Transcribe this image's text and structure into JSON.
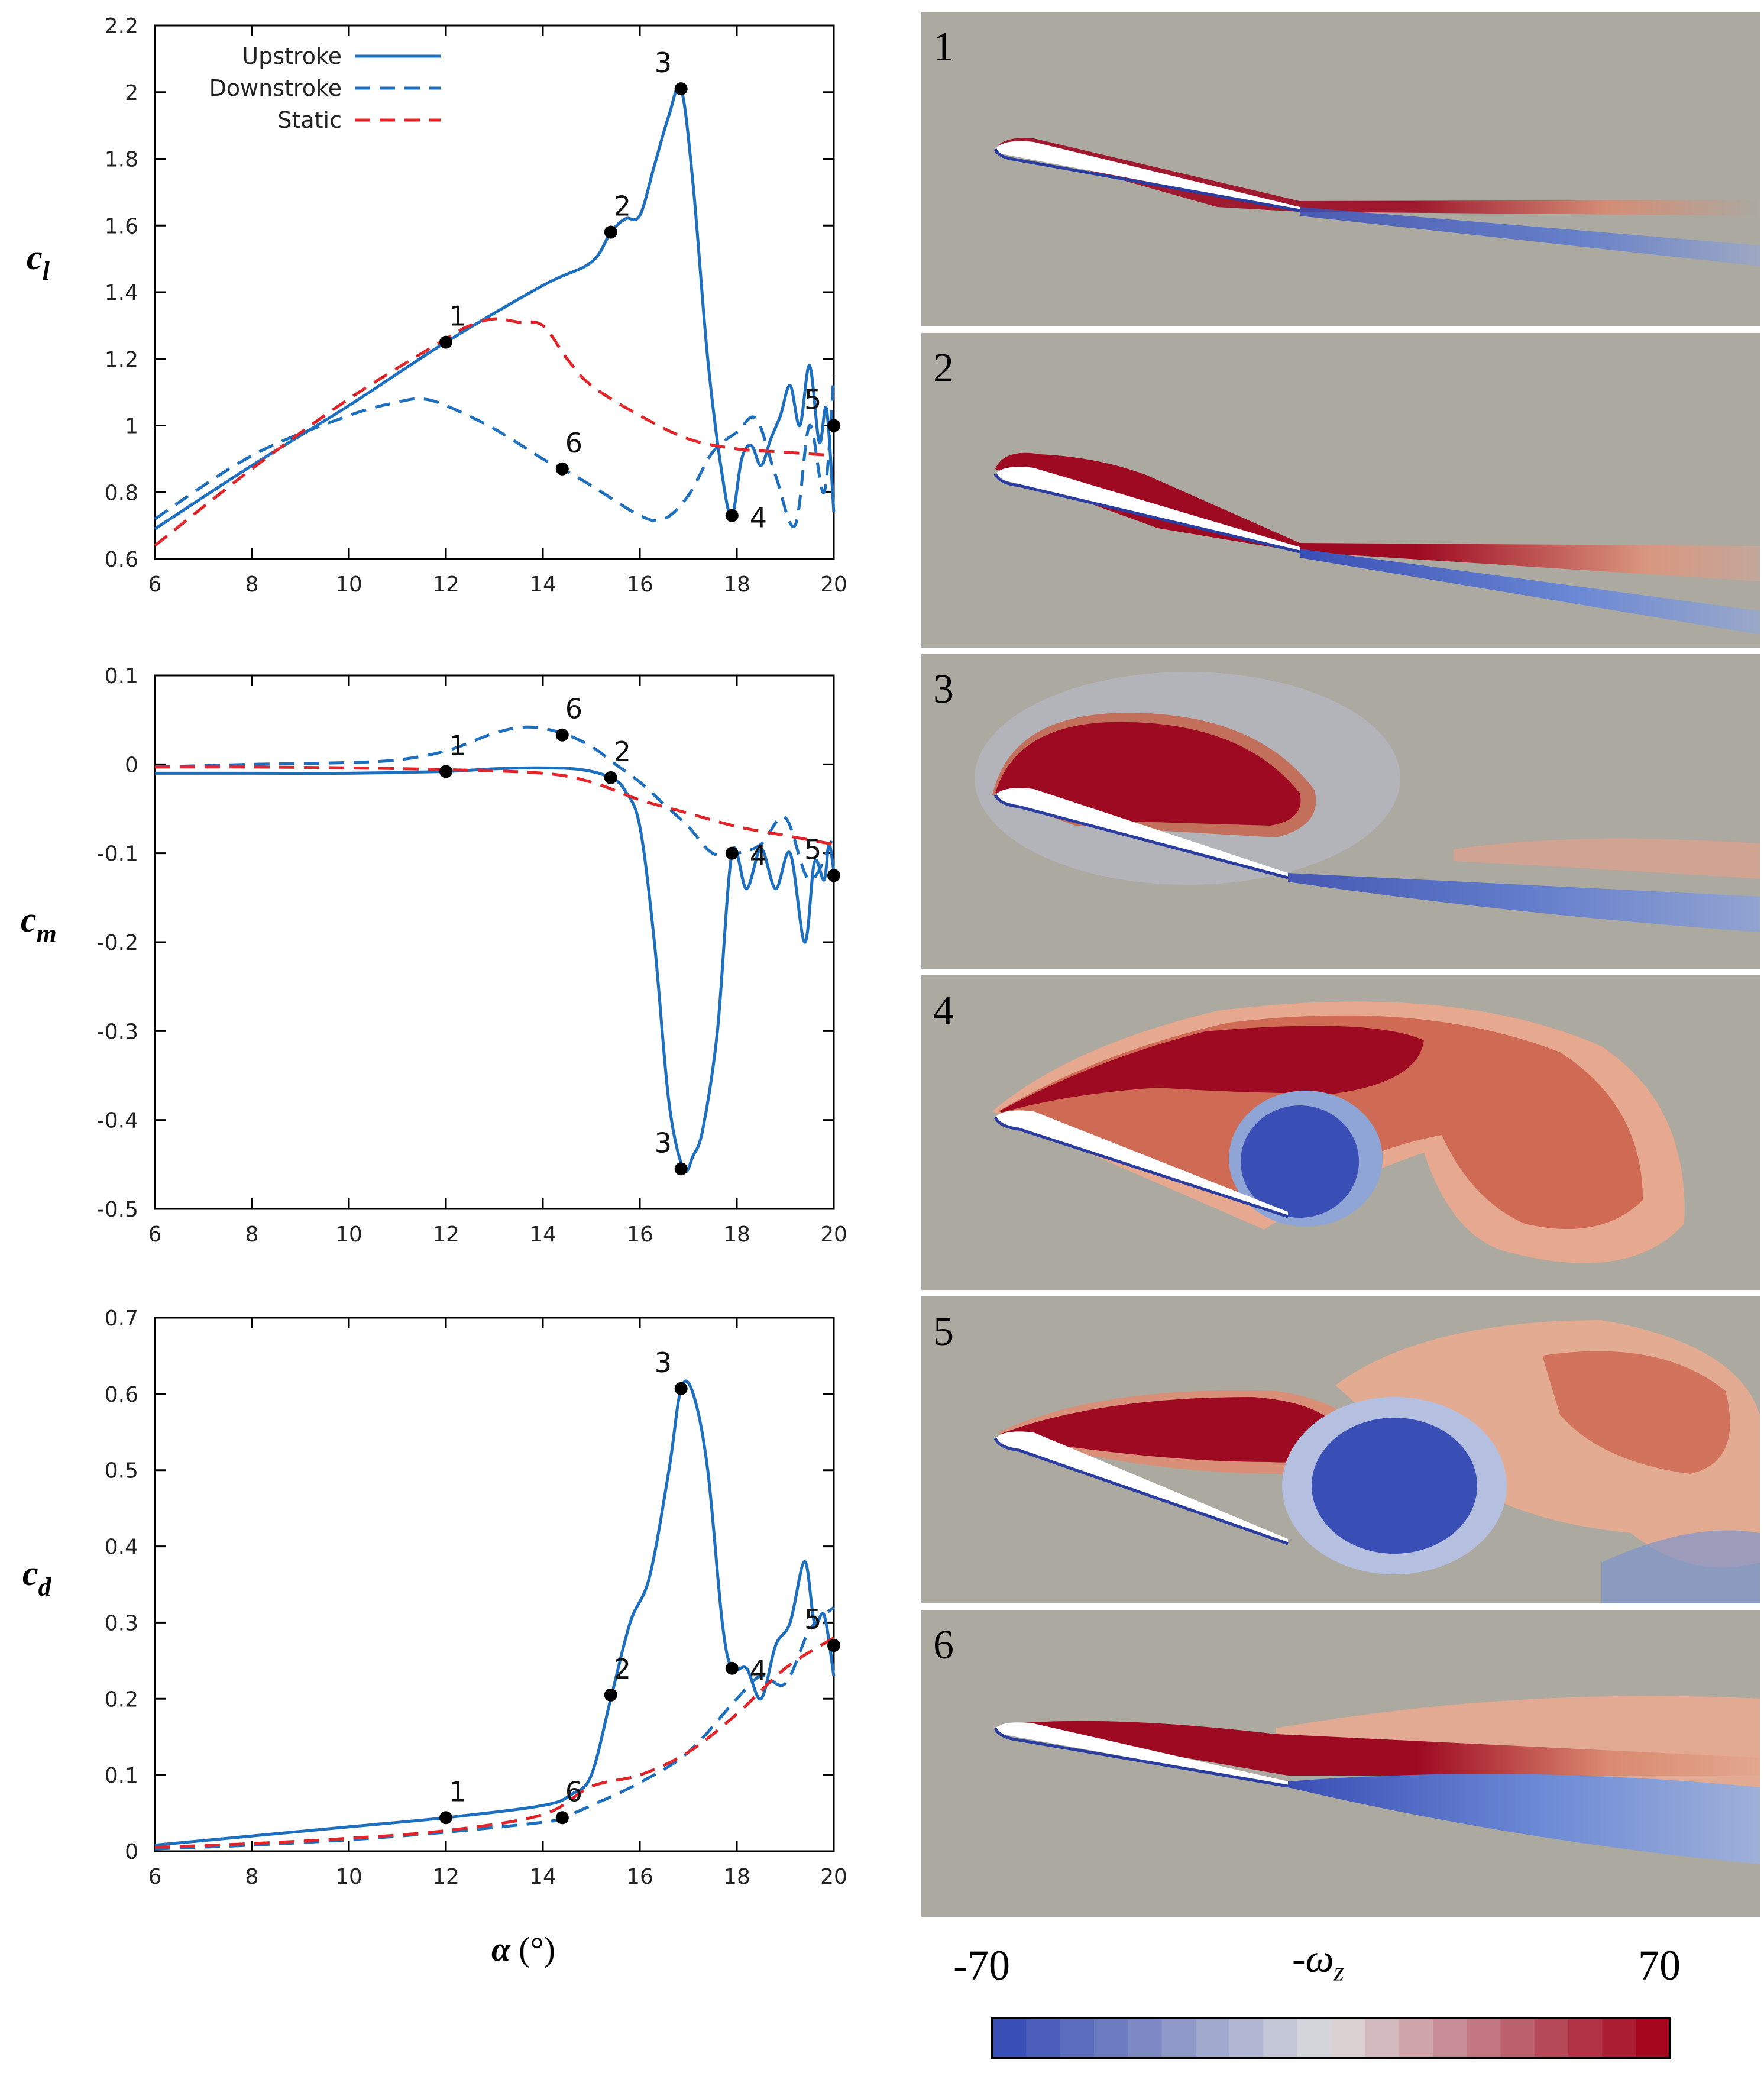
{
  "chart_data": [
    {
      "type": "line",
      "id": "cl",
      "ylabel": "c_l",
      "xlim": [
        6,
        20
      ],
      "ylim": [
        0.6,
        2.2
      ],
      "xticks": [
        6,
        8,
        10,
        12,
        14,
        16,
        18,
        20
      ],
      "yticks": [
        "0.6",
        "0.8",
        "1",
        "1.2",
        "1.4",
        "1.6",
        "1.8",
        "2",
        "2.2"
      ],
      "legend": "top-left",
      "series": [
        {
          "name": "Upstroke",
          "style": "solid",
          "color": "#1f6fbf",
          "x": [
            6,
            8,
            10,
            12,
            14,
            15,
            15.4,
            15.7,
            16,
            16.3,
            16.6,
            16.85,
            17.1,
            17.4,
            17.7,
            17.9,
            18.1,
            18.3,
            18.5,
            18.7,
            18.9,
            19.1,
            19.3,
            19.5,
            19.7,
            19.85,
            20
          ],
          "y": [
            0.69,
            0.88,
            1.06,
            1.25,
            1.42,
            1.49,
            1.58,
            1.62,
            1.63,
            1.78,
            1.93,
            2.01,
            1.72,
            1.2,
            0.85,
            0.73,
            0.9,
            0.94,
            0.88,
            0.96,
            1.03,
            1.12,
            1.0,
            1.18,
            0.95,
            1.05,
            0.74
          ]
        },
        {
          "name": "Downstroke",
          "style": "dashed",
          "color": "#1f6fbf",
          "x": [
            6,
            8,
            10,
            11,
            11.5,
            12,
            13,
            14,
            14.4,
            15,
            16,
            16.5,
            17,
            17.5,
            18,
            18.4,
            18.8,
            19.2,
            19.5,
            19.8,
            20
          ],
          "y": [
            0.72,
            0.91,
            1.03,
            1.07,
            1.08,
            1.06,
            0.99,
            0.9,
            0.87,
            0.82,
            0.73,
            0.72,
            0.79,
            0.92,
            0.98,
            1.02,
            0.85,
            0.7,
            1.0,
            0.8,
            1.15
          ]
        },
        {
          "name": "Static",
          "style": "dashed",
          "color": "#e0262b",
          "x": [
            6,
            8,
            10,
            12,
            12.5,
            13,
            13.5,
            14,
            14.5,
            15,
            16,
            17,
            18,
            19,
            20
          ],
          "y": [
            0.64,
            0.87,
            1.08,
            1.26,
            1.3,
            1.32,
            1.31,
            1.3,
            1.2,
            1.12,
            1.03,
            0.96,
            0.93,
            0.92,
            0.91
          ]
        }
      ],
      "points": [
        {
          "label": "1",
          "x": 12,
          "y": 1.25
        },
        {
          "label": "2",
          "x": 15.4,
          "y": 1.58
        },
        {
          "label": "3",
          "x": 16.85,
          "y": 2.01
        },
        {
          "label": "4",
          "x": 17.9,
          "y": 0.73
        },
        {
          "label": "5",
          "x": 20,
          "y": 1.0
        },
        {
          "label": "6",
          "x": 14.4,
          "y": 0.87
        }
      ]
    },
    {
      "type": "line",
      "id": "cm",
      "ylabel": "c_m",
      "xlim": [
        6,
        20
      ],
      "ylim": [
        -0.5,
        0.1
      ],
      "xticks": [
        6,
        8,
        10,
        12,
        14,
        16,
        18,
        20
      ],
      "yticks": [
        "-0.5",
        "-0.4",
        "-0.3",
        "-0.2",
        "-0.1",
        "0",
        "0.1"
      ],
      "series": [
        {
          "name": "Upstroke",
          "style": "solid",
          "color": "#1f6fbf",
          "x": [
            6,
            8,
            10,
            12,
            13,
            14,
            14.8,
            15.4,
            15.7,
            16,
            16.3,
            16.6,
            16.9,
            17.1,
            17.3,
            17.6,
            17.9,
            18.2,
            18.5,
            18.8,
            19.1,
            19.4,
            19.6,
            19.8,
            19.9,
            20
          ],
          "y": [
            -0.01,
            -0.01,
            -0.01,
            -0.008,
            -0.005,
            -0.004,
            -0.006,
            -0.015,
            -0.03,
            -0.07,
            -0.2,
            -0.38,
            -0.455,
            -0.44,
            -0.41,
            -0.3,
            -0.1,
            -0.14,
            -0.095,
            -0.14,
            -0.1,
            -0.2,
            -0.11,
            -0.13,
            -0.09,
            -0.12
          ]
        },
        {
          "name": "Downstroke",
          "style": "dashed",
          "color": "#1f6fbf",
          "x": [
            6,
            8,
            10,
            11,
            12,
            13,
            13.7,
            14.4,
            15,
            15.5,
            16,
            16.5,
            17,
            17.5,
            18,
            18.5,
            19,
            19.5,
            20
          ],
          "y": [
            -0.003,
            0.0,
            0.002,
            0.005,
            0.015,
            0.035,
            0.042,
            0.035,
            0.02,
            0.0,
            -0.02,
            -0.045,
            -0.07,
            -0.1,
            -0.1,
            -0.09,
            -0.06,
            -0.13,
            -0.08
          ]
        },
        {
          "name": "Static",
          "style": "dashed",
          "color": "#e0262b",
          "x": [
            6,
            8,
            10,
            12,
            14,
            15,
            16,
            17,
            18,
            19,
            20
          ],
          "y": [
            -0.003,
            -0.003,
            -0.004,
            -0.006,
            -0.01,
            -0.02,
            -0.04,
            -0.055,
            -0.07,
            -0.08,
            -0.09
          ]
        }
      ],
      "points": [
        {
          "label": "1",
          "x": 12,
          "y": -0.008
        },
        {
          "label": "2",
          "x": 15.4,
          "y": -0.015
        },
        {
          "label": "3",
          "x": 16.85,
          "y": -0.455
        },
        {
          "label": "4",
          "x": 17.9,
          "y": -0.1
        },
        {
          "label": "5",
          "x": 20,
          "y": -0.125
        },
        {
          "label": "6",
          "x": 14.4,
          "y": 0.033
        }
      ]
    },
    {
      "type": "line",
      "id": "cd",
      "ylabel": "c_d",
      "xlabel": "α (°)",
      "xlim": [
        6,
        20
      ],
      "ylim": [
        0,
        0.7
      ],
      "xticks": [
        6,
        8,
        10,
        12,
        14,
        16,
        18,
        20
      ],
      "yticks": [
        "0",
        "0.1",
        "0.2",
        "0.3",
        "0.4",
        "0.5",
        "0.6",
        "0.7"
      ],
      "series": [
        {
          "name": "Upstroke",
          "style": "solid",
          "color": "#1f6fbf",
          "x": [
            6,
            8,
            10,
            12,
            14,
            14.6,
            15,
            15.4,
            15.8,
            16.2,
            16.6,
            16.85,
            17.1,
            17.4,
            17.7,
            17.9,
            18.2,
            18.5,
            18.8,
            19.1,
            19.4,
            19.6,
            19.8,
            20
          ],
          "y": [
            0.008,
            0.02,
            0.032,
            0.044,
            0.06,
            0.075,
            0.1,
            0.2,
            0.3,
            0.36,
            0.5,
            0.607,
            0.6,
            0.5,
            0.3,
            0.24,
            0.24,
            0.2,
            0.27,
            0.3,
            0.38,
            0.3,
            0.31,
            0.23
          ]
        },
        {
          "name": "Downstroke",
          "style": "dashed",
          "color": "#1f6fbf",
          "x": [
            6,
            8,
            10,
            12,
            14,
            14.4,
            15,
            16,
            17,
            18,
            18.5,
            19,
            19.5,
            20
          ],
          "y": [
            0.003,
            0.008,
            0.015,
            0.025,
            0.038,
            0.044,
            0.06,
            0.09,
            0.13,
            0.2,
            0.23,
            0.22,
            0.29,
            0.32
          ]
        },
        {
          "name": "Static",
          "style": "dashed",
          "color": "#e0262b",
          "x": [
            6,
            8,
            10,
            12,
            14,
            15,
            16,
            17,
            18,
            19,
            20
          ],
          "y": [
            0.005,
            0.01,
            0.017,
            0.027,
            0.048,
            0.085,
            0.1,
            0.13,
            0.18,
            0.24,
            0.28
          ]
        }
      ],
      "points": [
        {
          "label": "1",
          "x": 12,
          "y": 0.044
        },
        {
          "label": "2",
          "x": 15.4,
          "y": 0.205
        },
        {
          "label": "3",
          "x": 16.85,
          "y": 0.607
        },
        {
          "label": "4",
          "x": 17.9,
          "y": 0.24
        },
        {
          "label": "5",
          "x": 20,
          "y": 0.27
        },
        {
          "label": "6",
          "x": 14.4,
          "y": 0.044
        }
      ]
    }
  ],
  "legend": {
    "items": [
      "Upstroke",
      "Downstroke",
      "Static"
    ]
  },
  "axis_labels": {
    "cl": "c",
    "cl_sub": "l",
    "cm": "c",
    "cm_sub": "m",
    "cd": "c",
    "cd_sub": "d",
    "alpha": "α",
    "alpha_unit": "(°)"
  },
  "panels": [
    {
      "label": "1"
    },
    {
      "label": "2"
    },
    {
      "label": "3"
    },
    {
      "label": "4"
    },
    {
      "label": "5"
    },
    {
      "label": "6"
    }
  ],
  "colorbar": {
    "min_label": "-70",
    "max_label": "70",
    "title": "-ω",
    "title_sub": "z",
    "low_color": "#3a4fb5",
    "mid_color": "#dcdcdc",
    "high_color": "#a5061d",
    "levels": 20
  },
  "colors": {
    "background": "#aba9a0",
    "red": "#9e0a22",
    "blue": "#3a4fb5",
    "foil": "#ffffff"
  }
}
